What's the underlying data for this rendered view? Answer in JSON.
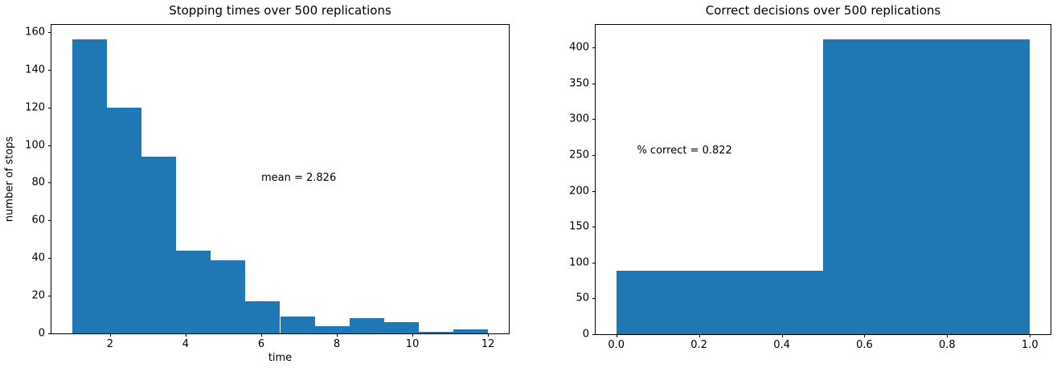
{
  "figure": {
    "background": "#ffffff",
    "bar_color": "#1f77b4",
    "axis_color": "#000000"
  },
  "chart_data": [
    {
      "type": "bar",
      "kind": "histogram",
      "title": "Stopping times over 500 replications",
      "xlabel": "time",
      "ylabel": "number of stops",
      "bin_edges": [
        1.0,
        1.9167,
        2.8333,
        3.75,
        4.6667,
        5.5833,
        6.5,
        7.4167,
        8.3333,
        9.25,
        10.1667,
        11.0833,
        12.0
      ],
      "values": [
        156,
        120,
        94,
        44,
        39,
        17,
        9,
        4,
        8,
        6,
        1,
        2
      ],
      "total_replications": 500,
      "xticks": [
        2,
        4,
        6,
        8,
        10,
        12
      ],
      "xtick_labels": [
        "2",
        "4",
        "6",
        "8",
        "10",
        "12"
      ],
      "yticks": [
        0,
        20,
        40,
        60,
        80,
        100,
        120,
        140,
        160
      ],
      "ytick_labels": [
        "0",
        "20",
        "40",
        "60",
        "80",
        "100",
        "120",
        "140",
        "160"
      ],
      "xlim": [
        0.45,
        12.55
      ],
      "ylim": [
        0,
        163.8
      ],
      "grid": false,
      "legend": null,
      "annotation": {
        "text": "mean = 2.826",
        "x": 6,
        "y": 80
      }
    },
    {
      "type": "bar",
      "kind": "histogram",
      "title": "Correct decisions over 500 replications",
      "xlabel": "",
      "ylabel": "",
      "bin_edges": [
        0.0,
        0.5,
        1.0
      ],
      "values": [
        89,
        411
      ],
      "total_replications": 500,
      "xticks": [
        0.0,
        0.2,
        0.4,
        0.6,
        0.8,
        1.0
      ],
      "xtick_labels": [
        "0.0",
        "0.2",
        "0.4",
        "0.6",
        "0.8",
        "1.0"
      ],
      "yticks": [
        0,
        50,
        100,
        150,
        200,
        250,
        300,
        350,
        400
      ],
      "ytick_labels": [
        "0",
        "50",
        "100",
        "150",
        "200",
        "250",
        "300",
        "350",
        "400"
      ],
      "xlim": [
        -0.05,
        1.05
      ],
      "ylim": [
        0,
        431.6
      ],
      "grid": false,
      "legend": null,
      "annotation": {
        "text": "% correct = 0.822",
        "x": 0.05,
        "y": 250
      }
    }
  ]
}
